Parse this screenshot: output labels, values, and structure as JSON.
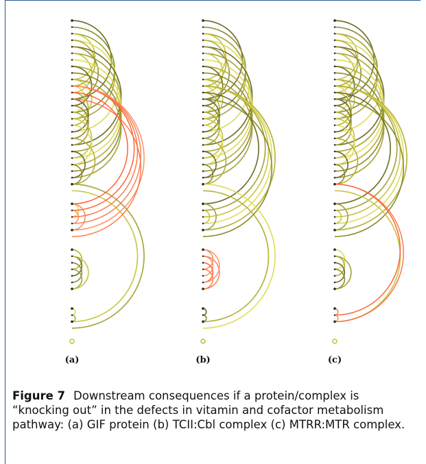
{
  "panels": [
    {
      "label": "(a)",
      "knockout": "GIF protein",
      "groups": [
        {
          "start": 0,
          "count": 26
        },
        {
          "start": 28,
          "count": 5
        },
        {
          "start": 35,
          "count": 7
        },
        {
          "start": 44,
          "count": 3
        },
        {
          "start": 49,
          "count": 1
        }
      ],
      "arcs": [
        {
          "from": 0,
          "to": 12,
          "s": "n"
        },
        {
          "from": 1,
          "to": 14,
          "s": "n"
        },
        {
          "from": 2,
          "to": 15,
          "s": "n"
        },
        {
          "from": 2,
          "to": 9,
          "s": "n"
        },
        {
          "from": 3,
          "to": 17,
          "s": "n"
        },
        {
          "from": 3,
          "to": 10,
          "s": "n"
        },
        {
          "from": 4,
          "to": 19,
          "s": "n"
        },
        {
          "from": 4,
          "to": 12,
          "s": "n"
        },
        {
          "from": 5,
          "to": 20,
          "s": "n"
        },
        {
          "from": 5,
          "to": 11,
          "s": "n"
        },
        {
          "from": 6,
          "to": 21,
          "s": "n"
        },
        {
          "from": 7,
          "to": 22,
          "s": "n"
        },
        {
          "from": 7,
          "to": 13,
          "s": "n"
        },
        {
          "from": 8,
          "to": 23,
          "s": "n"
        },
        {
          "from": 9,
          "to": 24,
          "s": "n"
        },
        {
          "from": 9,
          "to": 15,
          "s": "n"
        },
        {
          "from": 10,
          "to": 14,
          "s": "n"
        },
        {
          "from": 11,
          "to": 16,
          "s": "n"
        },
        {
          "from": 12,
          "to": 17,
          "s": "n"
        },
        {
          "from": 13,
          "to": 18,
          "s": "n"
        },
        {
          "from": 14,
          "to": 19,
          "s": "n"
        },
        {
          "from": 15,
          "to": 21,
          "s": "n"
        },
        {
          "from": 16,
          "to": 22,
          "s": "n"
        },
        {
          "from": 18,
          "to": 25,
          "s": "n"
        },
        {
          "from": 20,
          "to": 24,
          "s": "n"
        },
        {
          "from": 22,
          "to": 25,
          "s": "n"
        },
        {
          "from": 25,
          "to": 47,
          "s": "n"
        },
        {
          "from": 26,
          "to": 46,
          "s": "n"
        },
        {
          "from": 28,
          "to": 30,
          "s": "n"
        },
        {
          "from": 35,
          "to": 38,
          "s": "n"
        },
        {
          "from": 36,
          "to": 39,
          "s": "n"
        },
        {
          "from": 37,
          "to": 40,
          "s": "n"
        },
        {
          "from": 38,
          "to": 41,
          "s": "n"
        },
        {
          "from": 36,
          "to": 41,
          "s": "n"
        },
        {
          "from": 44,
          "to": 45,
          "s": "n"
        },
        {
          "from": 45,
          "to": 46,
          "s": "n"
        },
        {
          "from": 10,
          "to": 29,
          "s": "a"
        },
        {
          "from": 10,
          "to": 30,
          "s": "a"
        },
        {
          "from": 10,
          "to": 31,
          "s": "a"
        },
        {
          "from": 10,
          "to": 32,
          "s": "a"
        },
        {
          "from": 11,
          "to": 28,
          "s": "a"
        },
        {
          "from": 12,
          "to": 33,
          "s": "a"
        },
        {
          "from": 28,
          "to": 32,
          "s": "a"
        },
        {
          "from": 29,
          "to": 31,
          "s": "a"
        }
      ]
    },
    {
      "label": "(b)",
      "knockout": "TCII:Cbl complex",
      "groups": [
        {
          "start": 0,
          "count": 26
        },
        {
          "start": 28,
          "count": 5
        },
        {
          "start": 35,
          "count": 7
        },
        {
          "start": 44,
          "count": 3
        },
        {
          "start": 49,
          "count": 1
        }
      ],
      "arcs": [
        {
          "from": 0,
          "to": 12,
          "s": "n"
        },
        {
          "from": 1,
          "to": 14,
          "s": "n"
        },
        {
          "from": 2,
          "to": 15,
          "s": "n"
        },
        {
          "from": 2,
          "to": 9,
          "s": "n"
        },
        {
          "from": 3,
          "to": 17,
          "s": "n"
        },
        {
          "from": 3,
          "to": 10,
          "s": "n"
        },
        {
          "from": 4,
          "to": 19,
          "s": "n"
        },
        {
          "from": 4,
          "to": 12,
          "s": "n"
        },
        {
          "from": 5,
          "to": 20,
          "s": "n"
        },
        {
          "from": 5,
          "to": 11,
          "s": "n"
        },
        {
          "from": 6,
          "to": 21,
          "s": "n"
        },
        {
          "from": 7,
          "to": 22,
          "s": "n"
        },
        {
          "from": 7,
          "to": 13,
          "s": "n"
        },
        {
          "from": 8,
          "to": 23,
          "s": "n"
        },
        {
          "from": 9,
          "to": 24,
          "s": "n"
        },
        {
          "from": 9,
          "to": 15,
          "s": "n"
        },
        {
          "from": 10,
          "to": 14,
          "s": "n"
        },
        {
          "from": 11,
          "to": 16,
          "s": "n"
        },
        {
          "from": 12,
          "to": 17,
          "s": "n"
        },
        {
          "from": 13,
          "to": 18,
          "s": "n"
        },
        {
          "from": 14,
          "to": 19,
          "s": "n"
        },
        {
          "from": 15,
          "to": 21,
          "s": "n"
        },
        {
          "from": 16,
          "to": 22,
          "s": "n"
        },
        {
          "from": 18,
          "to": 25,
          "s": "n"
        },
        {
          "from": 20,
          "to": 24,
          "s": "n"
        },
        {
          "from": 22,
          "to": 25,
          "s": "n"
        },
        {
          "from": 10,
          "to": 29,
          "s": "n"
        },
        {
          "from": 10,
          "to": 30,
          "s": "n"
        },
        {
          "from": 10,
          "to": 31,
          "s": "n"
        },
        {
          "from": 10,
          "to": 32,
          "s": "n"
        },
        {
          "from": 11,
          "to": 28,
          "s": "n"
        },
        {
          "from": 12,
          "to": 33,
          "s": "n"
        },
        {
          "from": 28,
          "to": 32,
          "s": "n"
        },
        {
          "from": 29,
          "to": 31,
          "s": "n"
        },
        {
          "from": 25,
          "to": 47,
          "s": "n"
        },
        {
          "from": 26,
          "to": 46,
          "s": "n"
        },
        {
          "from": 44,
          "to": 45,
          "s": "n"
        },
        {
          "from": 45,
          "to": 46,
          "s": "n"
        },
        {
          "from": 35,
          "to": 38,
          "s": "a"
        },
        {
          "from": 36,
          "to": 39,
          "s": "a"
        },
        {
          "from": 37,
          "to": 40,
          "s": "a"
        },
        {
          "from": 38,
          "to": 41,
          "s": "a"
        },
        {
          "from": 36,
          "to": 41,
          "s": "a"
        },
        {
          "from": 35,
          "to": 40,
          "s": "a"
        }
      ]
    },
    {
      "label": "(c)",
      "knockout": "MTRR:MTR complex",
      "groups": [
        {
          "start": 0,
          "count": 26
        },
        {
          "start": 28,
          "count": 5
        },
        {
          "start": 35,
          "count": 7
        },
        {
          "start": 44,
          "count": 3
        },
        {
          "start": 49,
          "count": 1
        }
      ],
      "arcs": [
        {
          "from": 0,
          "to": 12,
          "s": "n"
        },
        {
          "from": 1,
          "to": 14,
          "s": "n"
        },
        {
          "from": 2,
          "to": 15,
          "s": "n"
        },
        {
          "from": 2,
          "to": 9,
          "s": "n"
        },
        {
          "from": 3,
          "to": 17,
          "s": "n"
        },
        {
          "from": 3,
          "to": 10,
          "s": "n"
        },
        {
          "from": 4,
          "to": 19,
          "s": "n"
        },
        {
          "from": 4,
          "to": 12,
          "s": "n"
        },
        {
          "from": 5,
          "to": 20,
          "s": "n"
        },
        {
          "from": 5,
          "to": 11,
          "s": "n"
        },
        {
          "from": 6,
          "to": 21,
          "s": "n"
        },
        {
          "from": 7,
          "to": 22,
          "s": "n"
        },
        {
          "from": 7,
          "to": 13,
          "s": "n"
        },
        {
          "from": 8,
          "to": 23,
          "s": "n"
        },
        {
          "from": 9,
          "to": 24,
          "s": "n"
        },
        {
          "from": 9,
          "to": 15,
          "s": "n"
        },
        {
          "from": 10,
          "to": 14,
          "s": "n"
        },
        {
          "from": 11,
          "to": 16,
          "s": "n"
        },
        {
          "from": 12,
          "to": 17,
          "s": "n"
        },
        {
          "from": 13,
          "to": 18,
          "s": "n"
        },
        {
          "from": 14,
          "to": 19,
          "s": "n"
        },
        {
          "from": 15,
          "to": 21,
          "s": "n"
        },
        {
          "from": 16,
          "to": 22,
          "s": "n"
        },
        {
          "from": 18,
          "to": 25,
          "s": "n"
        },
        {
          "from": 20,
          "to": 24,
          "s": "n"
        },
        {
          "from": 22,
          "to": 25,
          "s": "n"
        },
        {
          "from": 10,
          "to": 29,
          "s": "n"
        },
        {
          "from": 10,
          "to": 30,
          "s": "n"
        },
        {
          "from": 10,
          "to": 31,
          "s": "n"
        },
        {
          "from": 10,
          "to": 32,
          "s": "n"
        },
        {
          "from": 11,
          "to": 28,
          "s": "n"
        },
        {
          "from": 12,
          "to": 33,
          "s": "n"
        },
        {
          "from": 28,
          "to": 32,
          "s": "n"
        },
        {
          "from": 29,
          "to": 31,
          "s": "n"
        },
        {
          "from": 35,
          "to": 38,
          "s": "n"
        },
        {
          "from": 36,
          "to": 39,
          "s": "n"
        },
        {
          "from": 37,
          "to": 40,
          "s": "n"
        },
        {
          "from": 38,
          "to": 41,
          "s": "n"
        },
        {
          "from": 36,
          "to": 41,
          "s": "n"
        },
        {
          "from": 26,
          "to": 46,
          "s": "n"
        },
        {
          "from": 25,
          "to": 45,
          "s": "a"
        },
        {
          "from": 25,
          "to": 46,
          "s": "a"
        },
        {
          "from": 44,
          "to": 45,
          "s": "a"
        },
        {
          "from": 45,
          "to": 46,
          "s": "a"
        }
      ]
    }
  ],
  "colors": {
    "normal": [
      "#6b6a22",
      "#8a8a2c",
      "#a3a136",
      "#c7c43f",
      "#dedb55",
      "#b3ae30"
    ],
    "affected": [
      "#ff5a2a",
      "#ff7040",
      "#f08050",
      "#ff8a5a"
    ],
    "node": "#333333",
    "frame": "#2a5a8a"
  },
  "caption": {
    "label": "Figure 7",
    "text": "Downstream consequences if a protein/complex is “knocking out” in the defects in vitamin and cofactor metabolism pathway: (a) GIF protein (b) TCII:Cbl complex (c) MTRR:MTR complex."
  }
}
